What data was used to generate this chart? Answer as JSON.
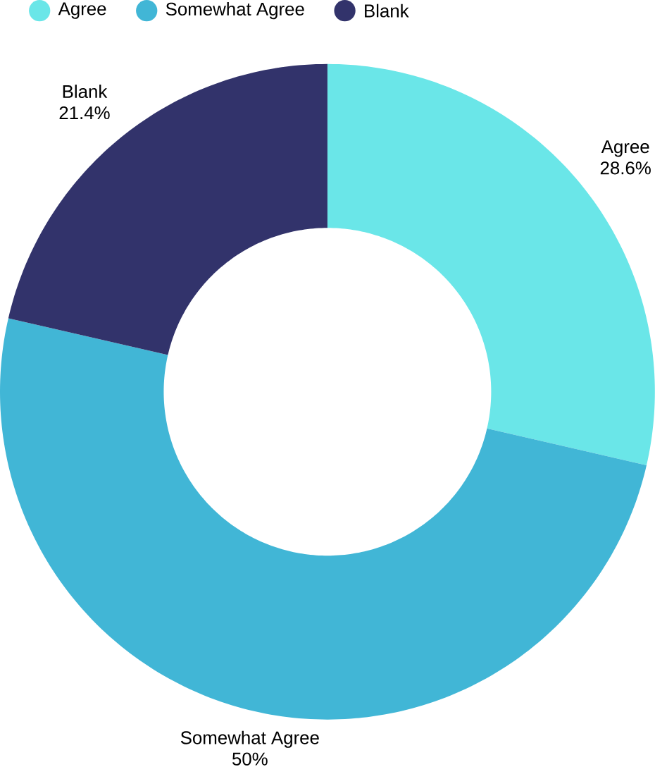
{
  "chart_data": {
    "type": "donut",
    "categories": [
      "Agree",
      "Somewhat Agree",
      "Blank"
    ],
    "values": [
      28.6,
      50,
      21.4
    ],
    "colors": [
      "#6ae6e8",
      "#41b6d6",
      "#32336b"
    ],
    "value_labels": [
      "28.6%",
      "50%",
      "21.4%"
    ],
    "legend": "top"
  }
}
